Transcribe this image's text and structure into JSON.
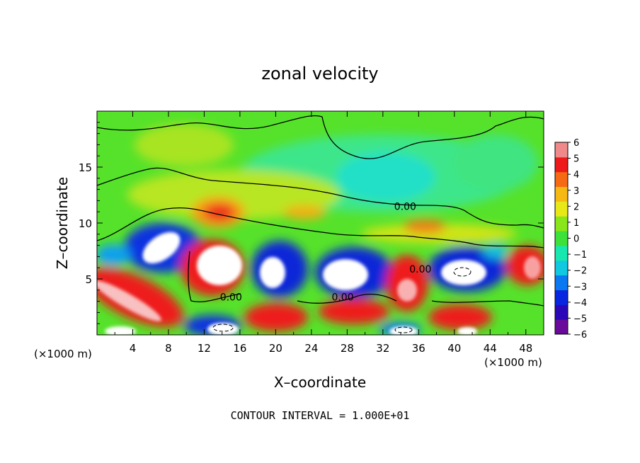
{
  "chart_data": {
    "type": "heatmap",
    "title": "zonal velocity",
    "xlabel": "X–coordinate",
    "ylabel": "Z–coordinate",
    "x_unit_label": "(×1000 m)",
    "y_unit_label": "(×1000 m)",
    "xlim": [
      0,
      50
    ],
    "ylim": [
      0,
      20
    ],
    "x_ticks": [
      4,
      8,
      12,
      16,
      20,
      24,
      28,
      32,
      36,
      40,
      44,
      48
    ],
    "y_ticks": [
      5,
      10,
      15
    ],
    "colorbar": {
      "min": -6,
      "max": 6,
      "ticks": [
        6,
        5,
        4,
        3,
        2,
        1,
        0,
        -1,
        -2,
        -3,
        -4,
        -5,
        -6
      ],
      "colors": [
        "#6a0a9a",
        "#2a08b8",
        "#0826e0",
        "#0a78f0",
        "#10c8e0",
        "#18e8b0",
        "#3ee03a",
        "#88e61a",
        "#e8e818",
        "#f6b812",
        "#f66a14",
        "#ee1a1a",
        "#f08a8a"
      ]
    },
    "contour_labels": [
      {
        "text": "0.00",
        "x": 34.5,
        "z": 11.5
      },
      {
        "text": "0.00",
        "x": 15.0,
        "z": 3.4
      },
      {
        "text": "0.00",
        "x": 27.5,
        "z": 3.4
      },
      {
        "text": "0.00",
        "x": 36.2,
        "z": 5.9
      }
    ],
    "footnote": "CONTOUR INTERVAL = 1.000E+01"
  }
}
